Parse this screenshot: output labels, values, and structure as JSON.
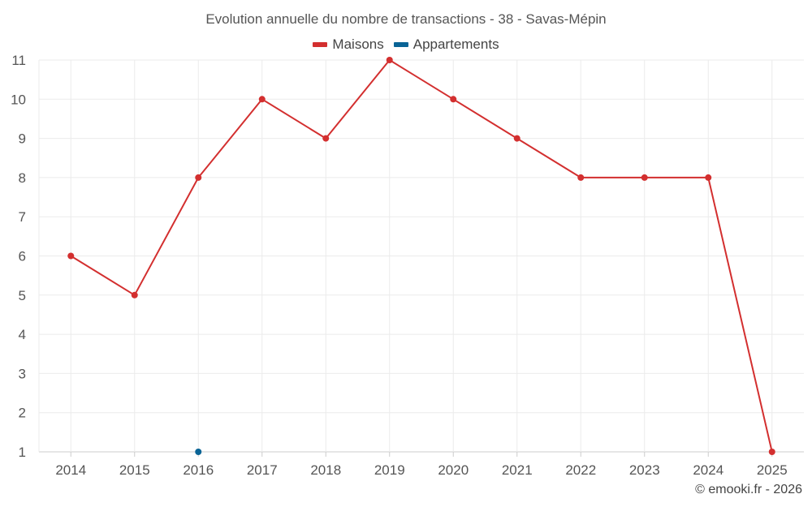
{
  "chart_data": {
    "type": "line",
    "title": "Evolution annuelle du nombre de transactions - 38 - Savas-Mépin",
    "categories": [
      "2014",
      "2015",
      "2016",
      "2017",
      "2018",
      "2019",
      "2020",
      "2021",
      "2022",
      "2023",
      "2024",
      "2025"
    ],
    "ylim": [
      1,
      11
    ],
    "yticks": [
      "1",
      "2",
      "3",
      "4",
      "5",
      "6",
      "7",
      "8",
      "9",
      "10",
      "11"
    ],
    "grid": true,
    "legend_position": "top-center",
    "series": [
      {
        "name": "Maisons",
        "color": "#d32f2f",
        "values": [
          6,
          5,
          8,
          10,
          9,
          11,
          10,
          9,
          8,
          8,
          8,
          1
        ]
      },
      {
        "name": "Appartements",
        "color": "#0a6496",
        "values": [
          null,
          null,
          1,
          null,
          null,
          null,
          null,
          null,
          null,
          null,
          null,
          null
        ]
      }
    ]
  },
  "footer": {
    "copyright": "© emooki.fr - 2026"
  }
}
